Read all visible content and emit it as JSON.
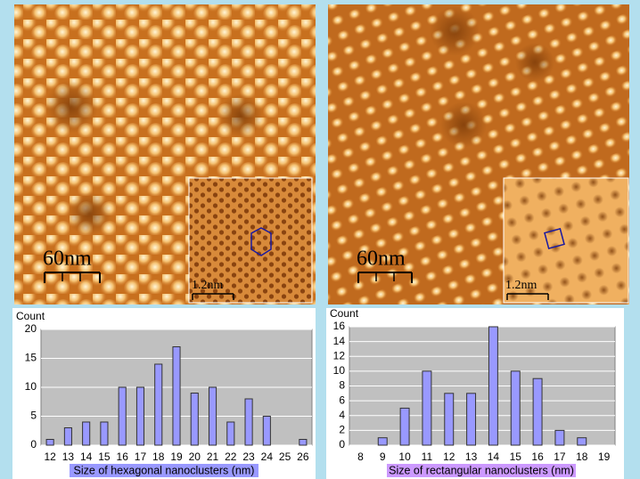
{
  "images": [
    {
      "scale_bar": "60nm",
      "inset_scale_bar": "1.2nm"
    },
    {
      "scale_bar": "60nm",
      "inset_scale_bar": "1.2nm"
    }
  ],
  "chart_data": [
    {
      "type": "bar",
      "y_label": "Count",
      "x_label": "Size of hexagonal nanoclusters (nm)",
      "categories": [
        "12",
        "13",
        "14",
        "15",
        "16",
        "17",
        "18",
        "19",
        "20",
        "21",
        "22",
        "23",
        "24",
        "25",
        "26"
      ],
      "values": [
        1,
        3,
        4,
        4,
        10,
        10,
        14,
        17,
        9,
        10,
        4,
        8,
        5,
        0,
        1
      ],
      "color": "#9999ff",
      "ylim": [
        0,
        20
      ],
      "yticks": [
        0,
        5,
        10,
        15,
        20
      ],
      "grid": true
    },
    {
      "type": "bar",
      "y_label": "Count",
      "x_label": "Size of rectangular nanoclusters (nm)",
      "categories": [
        "8",
        "9",
        "10",
        "11",
        "12",
        "13",
        "14",
        "15",
        "16",
        "17",
        "18",
        "19"
      ],
      "values": [
        0,
        1,
        5,
        10,
        7,
        7,
        16,
        10,
        9,
        2,
        1,
        0
      ],
      "color": "#9999ff",
      "ylim": [
        0,
        16
      ],
      "yticks": [
        0,
        2,
        4,
        6,
        8,
        10,
        12,
        14,
        16
      ],
      "grid": true
    }
  ]
}
